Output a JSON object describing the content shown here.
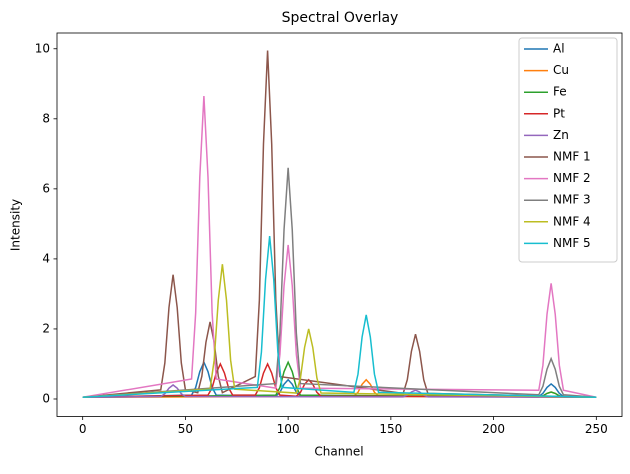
{
  "chart_data": {
    "type": "line",
    "title": "Spectral Overlay",
    "x_label": "Channel",
    "y_label": "Intensity",
    "xlim": [
      -12.5,
      262.5
    ],
    "ylim": [
      -0.5,
      10.45
    ],
    "xticks": [
      0,
      50,
      100,
      150,
      200,
      250
    ],
    "yticks": [
      0,
      2,
      4,
      6,
      8,
      10
    ],
    "grid": false,
    "legend": "upper right",
    "series": [
      {
        "name": "Al",
        "color": "#1f77b4",
        "x": [
          0,
          53,
          55,
          57,
          59,
          61,
          63,
          65,
          94,
          96,
          98,
          100,
          102,
          104,
          106,
          222,
          224,
          226,
          228,
          230,
          232,
          234,
          250
        ],
        "values": [
          0.05,
          0.11,
          0.33,
          0.78,
          1.05,
          0.78,
          0.33,
          0.11,
          0.08,
          0.19,
          0.42,
          0.55,
          0.42,
          0.19,
          0.08,
          0.07,
          0.16,
          0.33,
          0.43,
          0.33,
          0.16,
          0.07,
          0.05
        ]
      },
      {
        "name": "Cu",
        "color": "#ff7f0e",
        "x": [
          0,
          132,
          134,
          136,
          138,
          140,
          142,
          144,
          222,
          224,
          226,
          228,
          230,
          232,
          234,
          250
        ],
        "values": [
          0.05,
          0.08,
          0.19,
          0.42,
          0.55,
          0.42,
          0.19,
          0.08,
          0.06,
          0.09,
          0.16,
          0.2,
          0.16,
          0.09,
          0.06,
          0.05
        ]
      },
      {
        "name": "Fe",
        "color": "#2ca02c",
        "x": [
          0,
          94,
          96,
          98,
          100,
          102,
          104,
          106,
          222,
          224,
          226,
          228,
          230,
          232,
          234,
          250
        ],
        "values": [
          0.05,
          0.11,
          0.33,
          0.78,
          1.05,
          0.78,
          0.33,
          0.11,
          0.06,
          0.09,
          0.16,
          0.2,
          0.16,
          0.09,
          0.06,
          0.05
        ]
      },
      {
        "name": "Pt",
        "color": "#d62728",
        "x": [
          0,
          61,
          63,
          65,
          67,
          69,
          71,
          73,
          84,
          86,
          88,
          90,
          92,
          94,
          96,
          104,
          106,
          108,
          110,
          112,
          114,
          116,
          250
        ],
        "values": [
          0.05,
          0.11,
          0.32,
          0.74,
          1.0,
          0.74,
          0.32,
          0.11,
          0.11,
          0.32,
          0.74,
          1.0,
          0.74,
          0.32,
          0.11,
          0.08,
          0.19,
          0.42,
          0.55,
          0.42,
          0.19,
          0.08,
          0.05
        ]
      },
      {
        "name": "Zn",
        "color": "#9467bd",
        "x": [
          0,
          38,
          40,
          42,
          44,
          46,
          48,
          50,
          156,
          158,
          160,
          162,
          164,
          166,
          168,
          250
        ],
        "values": [
          0.05,
          0.07,
          0.15,
          0.31,
          0.4,
          0.31,
          0.15,
          0.07,
          0.06,
          0.11,
          0.2,
          0.25,
          0.2,
          0.11,
          0.06,
          0.05
        ]
      },
      {
        "name": "NMF 1",
        "color": "#8c564b",
        "x": [
          0,
          38,
          40,
          42,
          44,
          46,
          48,
          50,
          56,
          58,
          60,
          62,
          64,
          66,
          68,
          84,
          86,
          88,
          90,
          92,
          94,
          96,
          156,
          158,
          160,
          162,
          164,
          166,
          168,
          250
        ],
        "values": [
          0.05,
          0.26,
          1.03,
          2.61,
          3.55,
          2.61,
          1.03,
          0.26,
          0.18,
          0.65,
          1.62,
          2.2,
          1.62,
          0.65,
          0.18,
          0.64,
          2.82,
          7.28,
          9.95,
          7.28,
          2.82,
          0.64,
          0.16,
          0.55,
          1.36,
          1.85,
          1.36,
          0.55,
          0.16,
          0.05
        ]
      },
      {
        "name": "NMF 2",
        "color": "#e377c2",
        "x": [
          0,
          53,
          55,
          57,
          59,
          61,
          63,
          65,
          94,
          96,
          98,
          100,
          102,
          104,
          106,
          222,
          224,
          226,
          228,
          230,
          232,
          234,
          250
        ],
        "values": [
          0.05,
          0.57,
          2.46,
          6.33,
          8.65,
          6.33,
          2.46,
          0.57,
          0.31,
          1.27,
          3.23,
          4.4,
          3.23,
          1.27,
          0.31,
          0.25,
          0.96,
          2.42,
          3.3,
          2.42,
          0.96,
          0.25,
          0.05
        ]
      },
      {
        "name": "NMF 3",
        "color": "#7f7f7f",
        "x": [
          0,
          94,
          96,
          98,
          100,
          102,
          104,
          106,
          222,
          224,
          226,
          228,
          230,
          232,
          234,
          250
        ],
        "values": [
          0.05,
          0.44,
          1.88,
          4.83,
          6.6,
          4.83,
          1.88,
          0.44,
          0.12,
          0.36,
          0.85,
          1.15,
          0.85,
          0.36,
          0.12,
          0.05
        ]
      },
      {
        "name": "NMF 4",
        "color": "#bcbd22",
        "x": [
          0,
          62,
          64,
          66,
          68,
          70,
          72,
          74,
          104,
          106,
          108,
          110,
          112,
          114,
          116,
          250
        ],
        "values": [
          0.05,
          0.28,
          1.11,
          2.82,
          3.85,
          2.82,
          1.11,
          0.28,
          0.17,
          0.6,
          1.47,
          2.0,
          1.47,
          0.6,
          0.17,
          0.05
        ]
      },
      {
        "name": "NMF 5",
        "color": "#17becf",
        "x": [
          0,
          85,
          87,
          89,
          91,
          93,
          95,
          97,
          132,
          134,
          136,
          138,
          140,
          142,
          144,
          250
        ],
        "values": [
          0.05,
          0.33,
          1.34,
          3.41,
          4.65,
          3.41,
          1.34,
          0.33,
          0.19,
          0.71,
          1.77,
          2.4,
          1.77,
          0.71,
          0.19,
          0.05
        ]
      }
    ]
  }
}
